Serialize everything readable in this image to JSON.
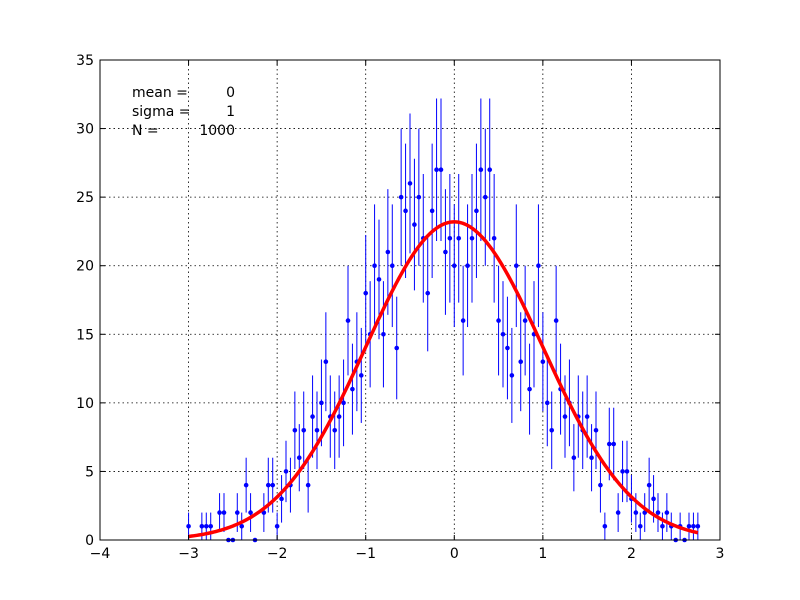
{
  "chart_data": {
    "type": "scatter",
    "title": "",
    "xlabel": "",
    "ylabel": "",
    "xlim": [
      -4,
      3
    ],
    "ylim": [
      0,
      35
    ],
    "grid": true,
    "x_ticks": [
      -4,
      -3,
      -2,
      -1,
      0,
      1,
      2,
      3
    ],
    "y_ticks": [
      0,
      5,
      10,
      15,
      20,
      25,
      30,
      35
    ],
    "x_tick_labels": [
      "−4",
      "−3",
      "−2",
      "−1",
      "0",
      "1",
      "2",
      "3"
    ],
    "y_tick_labels": [
      "0",
      "5",
      "10",
      "15",
      "20",
      "25",
      "30",
      "35"
    ],
    "annotations": [
      {
        "label": "mean =",
        "value": "0"
      },
      {
        "label": "sigma =",
        "value": "1"
      },
      {
        "label": "N =",
        "value": "1000"
      }
    ],
    "marker_color": "#0000ff",
    "curve_color": "#ff0000",
    "curve": {
      "amplitude": 23.2,
      "mean": 0,
      "sigma": 1
    },
    "points": [
      {
        "x": -3.0,
        "y": 1
      },
      {
        "x": -2.85,
        "y": 1
      },
      {
        "x": -2.8,
        "y": 1
      },
      {
        "x": -2.75,
        "y": 1
      },
      {
        "x": -2.65,
        "y": 2
      },
      {
        "x": -2.6,
        "y": 2
      },
      {
        "x": -2.55,
        "y": 0
      },
      {
        "x": -2.5,
        "y": 0
      },
      {
        "x": -2.45,
        "y": 2
      },
      {
        "x": -2.4,
        "y": 1
      },
      {
        "x": -2.35,
        "y": 4
      },
      {
        "x": -2.3,
        "y": 2
      },
      {
        "x": -2.25,
        "y": 0
      },
      {
        "x": -2.15,
        "y": 2
      },
      {
        "x": -2.1,
        "y": 4
      },
      {
        "x": -2.05,
        "y": 4
      },
      {
        "x": -2.0,
        "y": 1
      },
      {
        "x": -1.95,
        "y": 3
      },
      {
        "x": -1.9,
        "y": 5
      },
      {
        "x": -1.85,
        "y": 4
      },
      {
        "x": -1.8,
        "y": 8
      },
      {
        "x": -1.75,
        "y": 6
      },
      {
        "x": -1.7,
        "y": 8
      },
      {
        "x": -1.65,
        "y": 4
      },
      {
        "x": -1.6,
        "y": 9
      },
      {
        "x": -1.55,
        "y": 8
      },
      {
        "x": -1.5,
        "y": 10
      },
      {
        "x": -1.45,
        "y": 13
      },
      {
        "x": -1.4,
        "y": 9
      },
      {
        "x": -1.35,
        "y": 8
      },
      {
        "x": -1.3,
        "y": 9
      },
      {
        "x": -1.25,
        "y": 10
      },
      {
        "x": -1.2,
        "y": 16
      },
      {
        "x": -1.15,
        "y": 11
      },
      {
        "x": -1.1,
        "y": 13
      },
      {
        "x": -1.05,
        "y": 12
      },
      {
        "x": -1.0,
        "y": 18
      },
      {
        "x": -0.95,
        "y": 15
      },
      {
        "x": -0.9,
        "y": 20
      },
      {
        "x": -0.85,
        "y": 19
      },
      {
        "x": -0.8,
        "y": 15
      },
      {
        "x": -0.75,
        "y": 21
      },
      {
        "x": -0.7,
        "y": 20
      },
      {
        "x": -0.65,
        "y": 14
      },
      {
        "x": -0.6,
        "y": 25
      },
      {
        "x": -0.55,
        "y": 24
      },
      {
        "x": -0.5,
        "y": 26
      },
      {
        "x": -0.45,
        "y": 23
      },
      {
        "x": -0.4,
        "y": 25
      },
      {
        "x": -0.35,
        "y": 22
      },
      {
        "x": -0.3,
        "y": 18
      },
      {
        "x": -0.25,
        "y": 24
      },
      {
        "x": -0.2,
        "y": 27
      },
      {
        "x": -0.15,
        "y": 27
      },
      {
        "x": -0.1,
        "y": 21
      },
      {
        "x": -0.05,
        "y": 22
      },
      {
        "x": 0.0,
        "y": 20
      },
      {
        "x": 0.05,
        "y": 22
      },
      {
        "x": 0.1,
        "y": 16
      },
      {
        "x": 0.15,
        "y": 20
      },
      {
        "x": 0.2,
        "y": 22
      },
      {
        "x": 0.25,
        "y": 24
      },
      {
        "x": 0.3,
        "y": 27
      },
      {
        "x": 0.35,
        "y": 25
      },
      {
        "x": 0.4,
        "y": 27
      },
      {
        "x": 0.45,
        "y": 22
      },
      {
        "x": 0.5,
        "y": 16
      },
      {
        "x": 0.55,
        "y": 15
      },
      {
        "x": 0.6,
        "y": 14
      },
      {
        "x": 0.65,
        "y": 12
      },
      {
        "x": 0.7,
        "y": 20
      },
      {
        "x": 0.75,
        "y": 13
      },
      {
        "x": 0.8,
        "y": 16
      },
      {
        "x": 0.85,
        "y": 11
      },
      {
        "x": 0.9,
        "y": 15
      },
      {
        "x": 0.95,
        "y": 20
      },
      {
        "x": 1.0,
        "y": 13
      },
      {
        "x": 1.05,
        "y": 10
      },
      {
        "x": 1.1,
        "y": 8
      },
      {
        "x": 1.15,
        "y": 16
      },
      {
        "x": 1.2,
        "y": 11
      },
      {
        "x": 1.25,
        "y": 9
      },
      {
        "x": 1.3,
        "y": 10
      },
      {
        "x": 1.35,
        "y": 6
      },
      {
        "x": 1.4,
        "y": 9
      },
      {
        "x": 1.45,
        "y": 8
      },
      {
        "x": 1.5,
        "y": 9
      },
      {
        "x": 1.55,
        "y": 6
      },
      {
        "x": 1.6,
        "y": 8
      },
      {
        "x": 1.65,
        "y": 4
      },
      {
        "x": 1.7,
        "y": 1
      },
      {
        "x": 1.75,
        "y": 7
      },
      {
        "x": 1.8,
        "y": 7
      },
      {
        "x": 1.85,
        "y": 2
      },
      {
        "x": 1.9,
        "y": 5
      },
      {
        "x": 1.95,
        "y": 5
      },
      {
        "x": 2.0,
        "y": 3
      },
      {
        "x": 2.05,
        "y": 2
      },
      {
        "x": 2.1,
        "y": 1
      },
      {
        "x": 2.15,
        "y": 2
      },
      {
        "x": 2.2,
        "y": 4
      },
      {
        "x": 2.25,
        "y": 3
      },
      {
        "x": 2.3,
        "y": 2
      },
      {
        "x": 2.35,
        "y": 1
      },
      {
        "x": 2.4,
        "y": 2
      },
      {
        "x": 2.45,
        "y": 1
      },
      {
        "x": 2.5,
        "y": 0
      },
      {
        "x": 2.55,
        "y": 1
      },
      {
        "x": 2.6,
        "y": 0
      },
      {
        "x": 2.65,
        "y": 1
      },
      {
        "x": 2.7,
        "y": 1
      },
      {
        "x": 2.75,
        "y": 1
      }
    ]
  }
}
